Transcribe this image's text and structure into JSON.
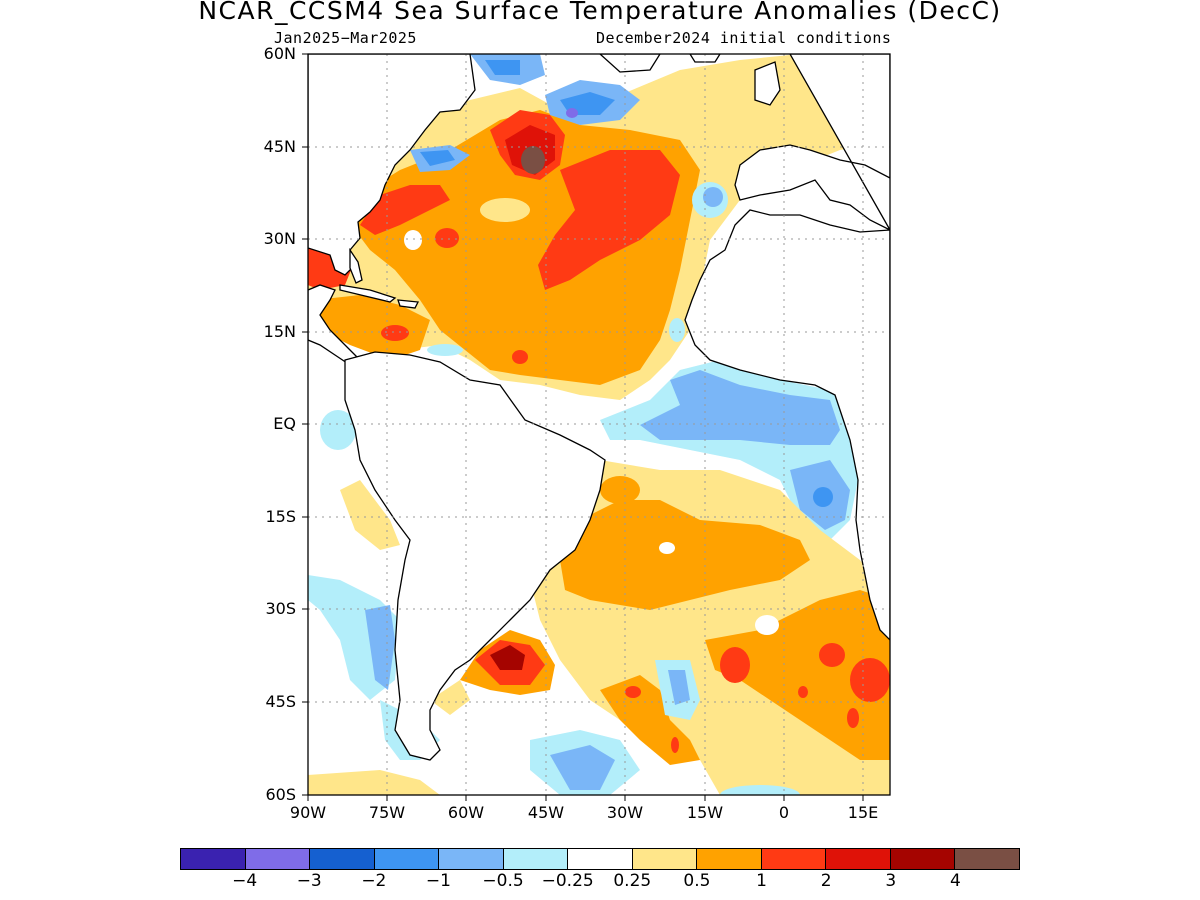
{
  "title": "NCAR_CCSM4 Sea Surface Temperature Anomalies (DecC)",
  "subtitle_left": "Jan2025−Mar2025",
  "subtitle_right": "December2024 initial conditions",
  "map": {
    "lon_range": [
      -90,
      20
    ],
    "lat_range": [
      -60,
      60
    ],
    "lat_labels": [
      "60N",
      "45N",
      "30N",
      "15N",
      "EQ",
      "15S",
      "30S",
      "45S",
      "60S"
    ],
    "lat_values": [
      60,
      45,
      30,
      15,
      0,
      -15,
      -30,
      -45,
      -60
    ],
    "lon_labels": [
      "90W",
      "75W",
      "60W",
      "45W",
      "30W",
      "15W",
      "0",
      "15E"
    ],
    "lon_values": [
      -90,
      -75,
      -60,
      -45,
      -30,
      -15,
      0,
      15
    ],
    "grid": "dotted"
  },
  "colorbar": {
    "colors": [
      "#3a22b0",
      "#7f6ce8",
      "#1560d0",
      "#3e95f2",
      "#7ab6f7",
      "#b3eefa",
      "#ffffff",
      "#ffe68a",
      "#ffa200",
      "#ff3a14",
      "#df1208",
      "#a50400",
      "#7a4f44"
    ],
    "labels": [
      "−4",
      "−3",
      "−2",
      "−1",
      "−0.5",
      "−0.25",
      "0.25",
      "0.5",
      "1",
      "2",
      "3",
      "4"
    ]
  }
}
